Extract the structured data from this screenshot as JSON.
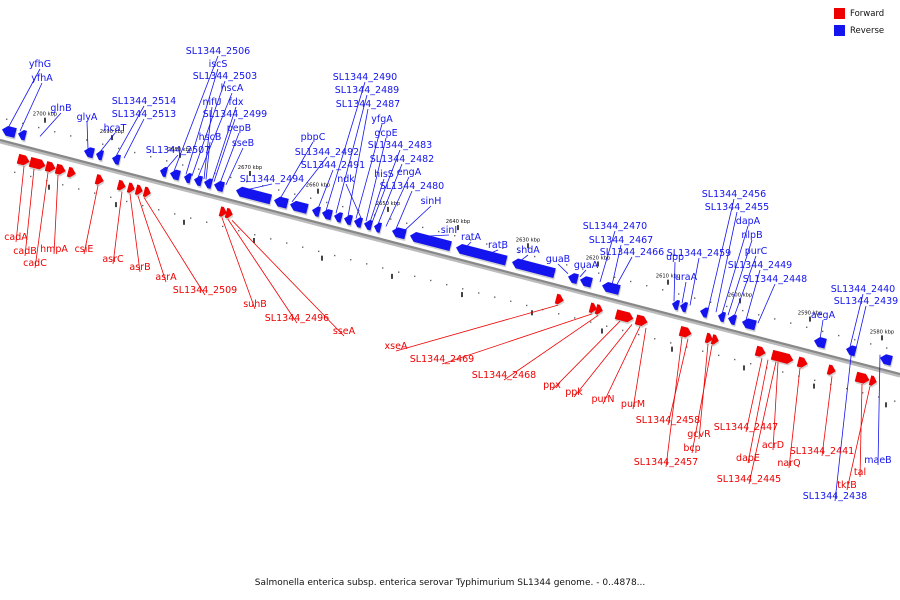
{
  "colors": {
    "forward": "#ee0000",
    "reverse": "#1414ee",
    "axis": "#888888",
    "tick": "#444444",
    "background": "#ffffff"
  },
  "legend": {
    "forward_label": "Forward",
    "reverse_label": "Reverse"
  },
  "caption": "Salmonella enterica subsp. enterica serovar Typhimurium SL1344 genome. - 0..4878...",
  "scale_labels": [
    "2700 kbp",
    "2690 kbp",
    "2680 kbp",
    "2670 kbp",
    "2660 kbp",
    "2650 kbp",
    "2640 kbp",
    "2630 kbp",
    "2620 kbp",
    "2610 kbp",
    "2600 kbp",
    "2590 kbp",
    "2580 kbp"
  ],
  "reverse_genes": [
    "yfhG",
    "yfhA",
    "glnB",
    "glyA",
    "hcaT",
    "SL1344_2514",
    "SL1344_2513",
    "SL1344_2507",
    "SL1344_2506",
    "iscS",
    "SL1344_2503",
    "hscA",
    "nifU",
    "fdx",
    "hscB",
    "SL1344_2499",
    "pepB",
    "sseB",
    "SL1344_2494",
    "pbpC",
    "SL1344_2492",
    "SL1344_2491",
    "SL1344_2490",
    "SL1344_2489",
    "SL1344_2487",
    "yfgA",
    "gcpE",
    "SL1344_2483",
    "SL1344_2482",
    "hisS",
    "ndk",
    "engA",
    "SL1344_2480",
    "sinH",
    "sinI",
    "ratA",
    "ratB",
    "shdA",
    "guaB",
    "guaA",
    "SL1344_2470",
    "SL1344_2467",
    "SL1344_2466",
    "uraA",
    "upp",
    "SL1344_2459",
    "SL1344_2456",
    "SL1344_2455",
    "dapA",
    "nlpB",
    "purC",
    "SL1344_2449",
    "SL1344_2448",
    "aegA",
    "SL1344_2440",
    "SL1344_2439",
    "maeB",
    "SL1344_2438"
  ],
  "forward_genes": [
    "cadA",
    "cadB",
    "cadC",
    "hmpA",
    "csiE",
    "asrC",
    "asrB",
    "asrA",
    "SL1344_2509",
    "suhB",
    "SL1344_2496",
    "sseA",
    "xseA",
    "SL1344_2469",
    "SL1344_2468",
    "ppx",
    "ppk",
    "purN",
    "purM",
    "SL1344_2458",
    "gcvR",
    "bcp",
    "SL1344_2457",
    "SL1344_2447",
    "dapE",
    "acrD",
    "narQ",
    "SL1344_2445",
    "SL1344_2441",
    "tal",
    "tktB"
  ]
}
